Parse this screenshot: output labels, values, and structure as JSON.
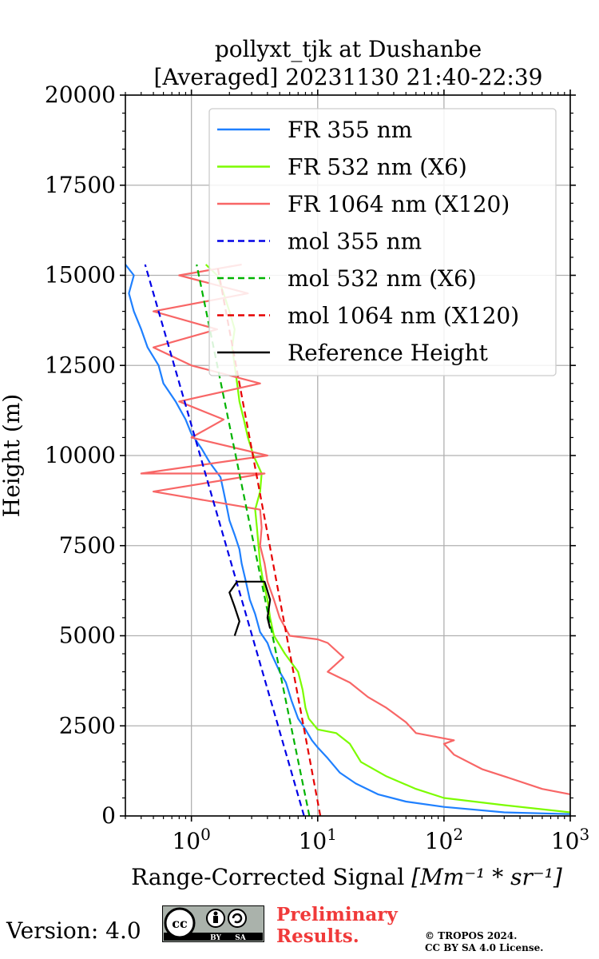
{
  "chart_data": {
    "type": "line",
    "title": "pollyxt_tjk at Dushanbe",
    "subtitle": "[Averaged] 20231130 21:40-22:39",
    "xlabel": "Range-Corrected Signal",
    "xlabel_unit": "[Mm⁻¹ * sr⁻¹]",
    "ylabel": "Height (m)",
    "xscale": "log",
    "xlim": [
      0.3,
      1000
    ],
    "ylim": [
      0,
      20000
    ],
    "grid": true,
    "legend_position": "top-right",
    "x_ticks": [
      {
        "value": 1,
        "label": "10",
        "exp": "0"
      },
      {
        "value": 10,
        "label": "10",
        "exp": "1"
      },
      {
        "value": 100,
        "label": "10",
        "exp": "2"
      },
      {
        "value": 1000,
        "label": "10",
        "exp": "3"
      }
    ],
    "y_ticks": [
      "0",
      "2500",
      "5000",
      "7500",
      "10000",
      "12500",
      "15000",
      "17500",
      "20000"
    ],
    "series": [
      {
        "name": "FR 355 nm",
        "color": "#1f80ff",
        "style": "solid",
        "points": [
          [
            1000,
            50
          ],
          [
            300,
            100
          ],
          [
            100,
            250
          ],
          [
            50,
            400
          ],
          [
            30,
            600
          ],
          [
            20,
            900
          ],
          [
            15,
            1200
          ],
          [
            12,
            1600
          ],
          [
            10,
            1900
          ],
          [
            9,
            2100
          ],
          [
            8,
            2400
          ],
          [
            7,
            2700
          ],
          [
            6.2,
            3200
          ],
          [
            5.6,
            3700
          ],
          [
            5,
            4000
          ],
          [
            4.3,
            4500
          ],
          [
            4,
            4800
          ],
          [
            3.5,
            5100
          ],
          [
            3.2,
            5600
          ],
          [
            2.9,
            6000
          ],
          [
            2.7,
            6500
          ],
          [
            2.5,
            7000
          ],
          [
            2.4,
            7400
          ],
          [
            2.2,
            7800
          ],
          [
            2,
            8200
          ],
          [
            1.9,
            8600
          ],
          [
            1.8,
            9000
          ],
          [
            1.7,
            9400
          ],
          [
            1.4,
            9800
          ],
          [
            1.2,
            10200
          ],
          [
            1.0,
            10600
          ],
          [
            0.9,
            11000
          ],
          [
            0.75,
            11500
          ],
          [
            0.6,
            12000
          ],
          [
            0.55,
            12500
          ],
          [
            0.45,
            13000
          ],
          [
            0.4,
            13500
          ],
          [
            0.35,
            14000
          ],
          [
            0.32,
            14500
          ],
          [
            0.35,
            15000
          ],
          [
            0.3,
            15300
          ]
        ]
      },
      {
        "name": "FR 532 nm (X6)",
        "color": "#7cfc00",
        "style": "solid",
        "points": [
          [
            1000,
            100
          ],
          [
            300,
            300
          ],
          [
            100,
            500
          ],
          [
            60,
            750
          ],
          [
            35,
            1100
          ],
          [
            22,
            1500
          ],
          [
            18,
            2000
          ],
          [
            14,
            2300
          ],
          [
            10,
            2400
          ],
          [
            8.5,
            2700
          ],
          [
            8,
            3000
          ],
          [
            7.6,
            3500
          ],
          [
            7,
            4000
          ],
          [
            5.5,
            4500
          ],
          [
            4.5,
            5000
          ],
          [
            4.2,
            5500
          ],
          [
            4,
            6000
          ],
          [
            3.7,
            6500
          ],
          [
            3.5,
            7000
          ],
          [
            3.4,
            7500
          ],
          [
            3.3,
            8000
          ],
          [
            3.2,
            8500
          ],
          [
            3.5,
            9000
          ],
          [
            3.6,
            9500
          ],
          [
            3.1,
            10000
          ],
          [
            2.8,
            10500
          ],
          [
            2.6,
            11000
          ],
          [
            2.4,
            11500
          ],
          [
            2.3,
            12000
          ],
          [
            2.2,
            12500
          ],
          [
            2.1,
            13000
          ],
          [
            2.2,
            13500
          ],
          [
            2.0,
            14000
          ],
          [
            1.8,
            14500
          ],
          [
            1.6,
            15000
          ],
          [
            1.3,
            15300
          ]
        ]
      },
      {
        "name": "FR 1064 nm (X120)",
        "color": "#f86666",
        "style": "solid",
        "points": [
          [
            1000,
            600
          ],
          [
            600,
            750
          ],
          [
            300,
            1100
          ],
          [
            200,
            1300
          ],
          [
            120,
            1700
          ],
          [
            100,
            2000
          ],
          [
            120,
            2100
          ],
          [
            60,
            2300
          ],
          [
            50,
            2600
          ],
          [
            35,
            3000
          ],
          [
            25,
            3300
          ],
          [
            18,
            3700
          ],
          [
            12,
            4000
          ],
          [
            16,
            4400
          ],
          [
            12,
            4800
          ],
          [
            10,
            4900
          ],
          [
            6,
            5000
          ],
          [
            5,
            5500
          ],
          [
            4.5,
            6000
          ],
          [
            4,
            6500
          ],
          [
            3.8,
            7000
          ],
          [
            3.5,
            7500
          ],
          [
            3.6,
            8000
          ],
          [
            3.5,
            8500
          ],
          [
            0.5,
            9000
          ],
          [
            3.8,
            9500
          ],
          [
            0.4,
            9500
          ],
          [
            4,
            10000
          ],
          [
            1.0,
            10500
          ],
          [
            1.8,
            11000
          ],
          [
            0.8,
            11500
          ],
          [
            3.5,
            12000
          ],
          [
            1.0,
            12500
          ],
          [
            0.5,
            13000
          ],
          [
            1.6,
            13500
          ],
          [
            0.5,
            14000
          ],
          [
            2.8,
            14500
          ],
          [
            0.8,
            15000
          ],
          [
            2.5,
            15300
          ]
        ]
      },
      {
        "name": "mol 355 nm",
        "color": "#0000e6",
        "style": "dashed",
        "points": [
          [
            7.8,
            0
          ],
          [
            0.43,
            15300
          ]
        ]
      },
      {
        "name": "mol 532 nm (X6)",
        "color": "#00b300",
        "style": "dashed",
        "points": [
          [
            8.6,
            0
          ],
          [
            1.1,
            15300
          ]
        ]
      },
      {
        "name": "mol 1064 nm (X120)",
        "color": "#e60000",
        "style": "dashed",
        "points": [
          [
            10.5,
            0
          ],
          [
            1.6,
            15300
          ]
        ]
      },
      {
        "name": "Reference Height",
        "color": "#000000",
        "style": "solid",
        "points": [
          [
            2.2,
            5000
          ],
          [
            2.4,
            5400
          ],
          [
            2.2,
            5800
          ],
          [
            2.0,
            6200
          ],
          [
            2.3,
            6500
          ],
          [
            3.8,
            6500
          ],
          [
            4.2,
            6000
          ],
          [
            4.0,
            5500
          ],
          [
            4.2,
            5200
          ]
        ]
      }
    ]
  },
  "footer": {
    "version": "Version: 4.0",
    "license_badge": "cc-by-sa-badge",
    "badge_by": "BY",
    "badge_sa": "SA",
    "preliminary_line1": "Preliminary",
    "preliminary_line2": "Results.",
    "copyright_line1": "© TROPOS 2024.",
    "copyright_line2": "CC BY SA 4.0 License."
  }
}
